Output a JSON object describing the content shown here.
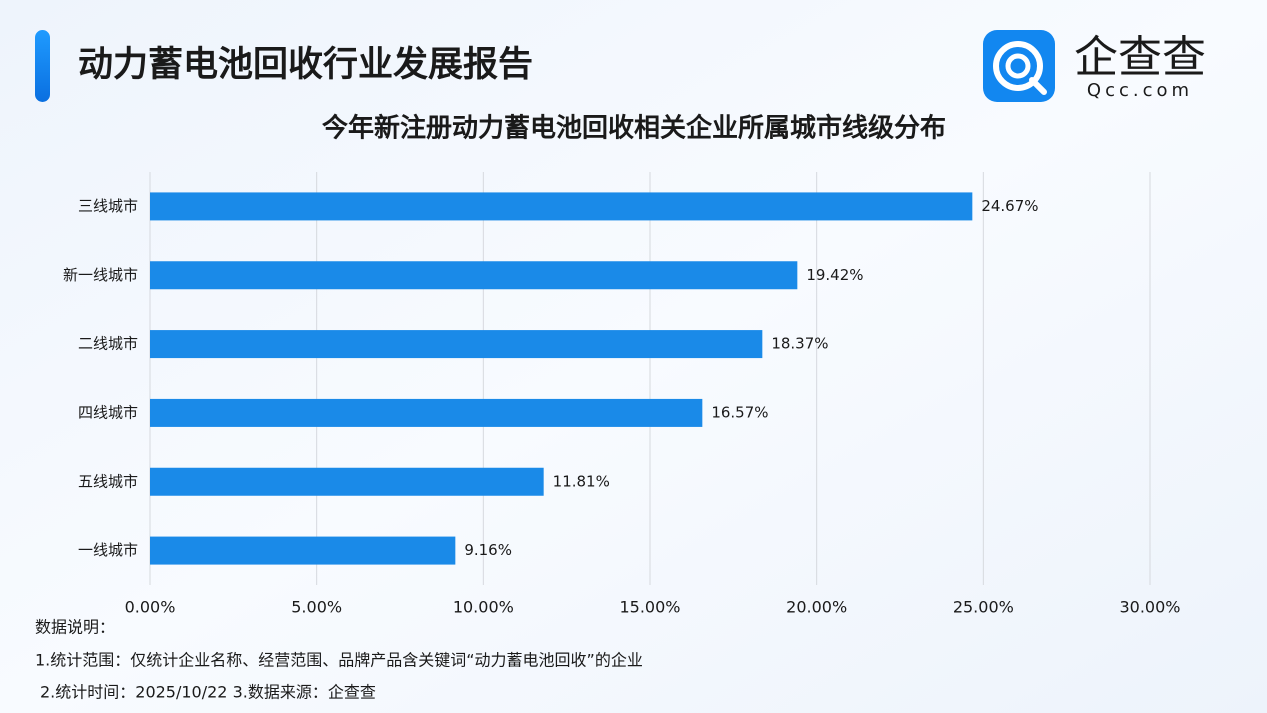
{
  "header": {
    "title": "动力蓄电池回收行业发展报告",
    "brand": "企查查",
    "brand_domain": "Qcc.com"
  },
  "chart_data": {
    "type": "bar",
    "orientation": "horizontal",
    "title": "今年新注册动力蓄电池回收相关企业所属城市线级分布",
    "categories": [
      "三线城市",
      "新一线城市",
      "二线城市",
      "四线城市",
      "五线城市",
      "一线城市"
    ],
    "values": [
      24.67,
      19.42,
      18.37,
      16.57,
      11.81,
      9.16
    ],
    "value_labels": [
      "24.67%",
      "19.42%",
      "18.37%",
      "16.57%",
      "11.81%",
      "9.16%"
    ],
    "color": "#1a8ae8",
    "xlim": [
      0,
      30
    ],
    "xticks": [
      {
        "value": 0,
        "label": "0.00%"
      },
      {
        "value": 5,
        "label": "5.00%"
      },
      {
        "value": 10,
        "label": "10.00%"
      },
      {
        "value": 15,
        "label": "15.00%"
      },
      {
        "value": 20,
        "label": "20.00%"
      },
      {
        "value": 25,
        "label": "25.00%"
      },
      {
        "value": 30,
        "label": "30.00%"
      }
    ],
    "grid": true
  },
  "notes": [
    "数据说明：",
    "1.统计范围：仅统计企业名称、经营范围、品牌产品含关键词“动力蓄电池回收”的企业",
    "2.统计时间：2025/10/22 3.数据来源：企查查"
  ]
}
